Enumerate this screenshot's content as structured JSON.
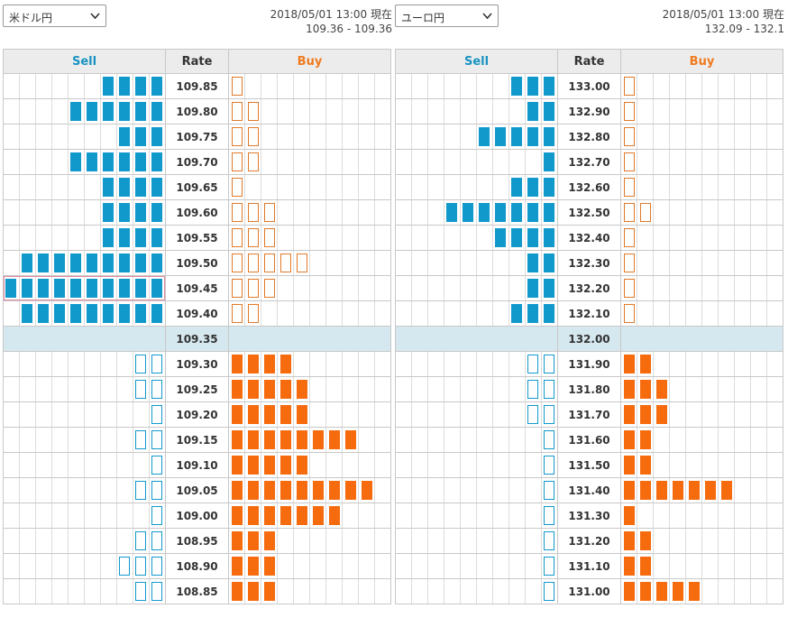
{
  "colors": {
    "sell": "#1199cc",
    "buy": "#f56b0e",
    "current_row_bg": "#d6e8ef",
    "header_bg": "#ececec"
  },
  "icons": {
    "dropdown": "chevron-down-icon"
  },
  "panels": [
    {
      "pair": "米ドル円",
      "timestamp": "2018/05/01 13:00 現在",
      "range": "109.36 - 109.36",
      "headers": {
        "sell": "Sell",
        "rate": "Rate",
        "buy": "Buy"
      },
      "rows": [
        {
          "rate": "109.85",
          "sell_filled": 4,
          "sell_outline": 0,
          "buy_filled": 0,
          "buy_outline": 1
        },
        {
          "rate": "109.80",
          "sell_filled": 6,
          "sell_outline": 0,
          "buy_filled": 0,
          "buy_outline": 2
        },
        {
          "rate": "109.75",
          "sell_filled": 3,
          "sell_outline": 0,
          "buy_filled": 0,
          "buy_outline": 2
        },
        {
          "rate": "109.70",
          "sell_filled": 6,
          "sell_outline": 0,
          "buy_filled": 0,
          "buy_outline": 2
        },
        {
          "rate": "109.65",
          "sell_filled": 4,
          "sell_outline": 0,
          "buy_filled": 0,
          "buy_outline": 1
        },
        {
          "rate": "109.60",
          "sell_filled": 4,
          "sell_outline": 0,
          "buy_filled": 0,
          "buy_outline": 3
        },
        {
          "rate": "109.55",
          "sell_filled": 4,
          "sell_outline": 0,
          "buy_filled": 0,
          "buy_outline": 3
        },
        {
          "rate": "109.50",
          "sell_filled": 9,
          "sell_outline": 0,
          "buy_filled": 0,
          "buy_outline": 5
        },
        {
          "rate": "109.45",
          "sell_filled": 10,
          "sell_outline": 0,
          "buy_filled": 0,
          "buy_outline": 3,
          "selected": true
        },
        {
          "rate": "109.40",
          "sell_filled": 9,
          "sell_outline": 0,
          "buy_filled": 0,
          "buy_outline": 2
        },
        {
          "rate": "109.35",
          "current": true,
          "sell_filled": 0,
          "sell_outline": 0,
          "buy_filled": 0,
          "buy_outline": 0
        },
        {
          "rate": "109.30",
          "sell_filled": 0,
          "sell_outline": 2,
          "buy_filled": 4,
          "buy_outline": 0
        },
        {
          "rate": "109.25",
          "sell_filled": 0,
          "sell_outline": 2,
          "buy_filled": 5,
          "buy_outline": 0
        },
        {
          "rate": "109.20",
          "sell_filled": 0,
          "sell_outline": 1,
          "buy_filled": 5,
          "buy_outline": 0
        },
        {
          "rate": "109.15",
          "sell_filled": 0,
          "sell_outline": 2,
          "buy_filled": 8,
          "buy_outline": 0
        },
        {
          "rate": "109.10",
          "sell_filled": 0,
          "sell_outline": 1,
          "buy_filled": 5,
          "buy_outline": 0
        },
        {
          "rate": "109.05",
          "sell_filled": 0,
          "sell_outline": 2,
          "buy_filled": 9,
          "buy_outline": 0
        },
        {
          "rate": "109.00",
          "sell_filled": 0,
          "sell_outline": 1,
          "buy_filled": 7,
          "buy_outline": 0
        },
        {
          "rate": "108.95",
          "sell_filled": 0,
          "sell_outline": 2,
          "buy_filled": 3,
          "buy_outline": 0
        },
        {
          "rate": "108.90",
          "sell_filled": 0,
          "sell_outline": 3,
          "buy_filled": 3,
          "buy_outline": 0
        },
        {
          "rate": "108.85",
          "sell_filled": 0,
          "sell_outline": 2,
          "buy_filled": 3,
          "buy_outline": 0
        }
      ]
    },
    {
      "pair": "ユーロ円",
      "timestamp": "2018/05/01 13:00 現在",
      "range": "132.09 - 132.1",
      "headers": {
        "sell": "Sell",
        "rate": "Rate",
        "buy": "Buy"
      },
      "rows": [
        {
          "rate": "133.00",
          "sell_filled": 3,
          "sell_outline": 0,
          "buy_filled": 0,
          "buy_outline": 1
        },
        {
          "rate": "132.90",
          "sell_filled": 2,
          "sell_outline": 0,
          "buy_filled": 0,
          "buy_outline": 1
        },
        {
          "rate": "132.80",
          "sell_filled": 5,
          "sell_outline": 0,
          "buy_filled": 0,
          "buy_outline": 1
        },
        {
          "rate": "132.70",
          "sell_filled": 1,
          "sell_outline": 0,
          "buy_filled": 0,
          "buy_outline": 1
        },
        {
          "rate": "132.60",
          "sell_filled": 3,
          "sell_outline": 0,
          "buy_filled": 0,
          "buy_outline": 1
        },
        {
          "rate": "132.50",
          "sell_filled": 7,
          "sell_outline": 0,
          "buy_filled": 0,
          "buy_outline": 2
        },
        {
          "rate": "132.40",
          "sell_filled": 4,
          "sell_outline": 0,
          "buy_filled": 0,
          "buy_outline": 1
        },
        {
          "rate": "132.30",
          "sell_filled": 2,
          "sell_outline": 0,
          "buy_filled": 0,
          "buy_outline": 1
        },
        {
          "rate": "132.20",
          "sell_filled": 2,
          "sell_outline": 0,
          "buy_filled": 0,
          "buy_outline": 1
        },
        {
          "rate": "132.10",
          "sell_filled": 3,
          "sell_outline": 0,
          "buy_filled": 0,
          "buy_outline": 1
        },
        {
          "rate": "132.00",
          "current": true,
          "sell_filled": 0,
          "sell_outline": 0,
          "buy_filled": 0,
          "buy_outline": 0
        },
        {
          "rate": "131.90",
          "sell_filled": 0,
          "sell_outline": 2,
          "buy_filled": 2,
          "buy_outline": 0
        },
        {
          "rate": "131.80",
          "sell_filled": 0,
          "sell_outline": 2,
          "buy_filled": 3,
          "buy_outline": 0
        },
        {
          "rate": "131.70",
          "sell_filled": 0,
          "sell_outline": 2,
          "buy_filled": 3,
          "buy_outline": 0
        },
        {
          "rate": "131.60",
          "sell_filled": 0,
          "sell_outline": 1,
          "buy_filled": 2,
          "buy_outline": 0
        },
        {
          "rate": "131.50",
          "sell_filled": 0,
          "sell_outline": 1,
          "buy_filled": 2,
          "buy_outline": 0
        },
        {
          "rate": "131.40",
          "sell_filled": 0,
          "sell_outline": 1,
          "buy_filled": 7,
          "buy_outline": 0
        },
        {
          "rate": "131.30",
          "sell_filled": 0,
          "sell_outline": 1,
          "buy_filled": 1,
          "buy_outline": 0
        },
        {
          "rate": "131.20",
          "sell_filled": 0,
          "sell_outline": 1,
          "buy_filled": 2,
          "buy_outline": 0
        },
        {
          "rate": "131.10",
          "sell_filled": 0,
          "sell_outline": 1,
          "buy_filled": 2,
          "buy_outline": 0
        },
        {
          "rate": "131.00",
          "sell_filled": 0,
          "sell_outline": 1,
          "buy_filled": 5,
          "buy_outline": 0
        }
      ]
    }
  ]
}
